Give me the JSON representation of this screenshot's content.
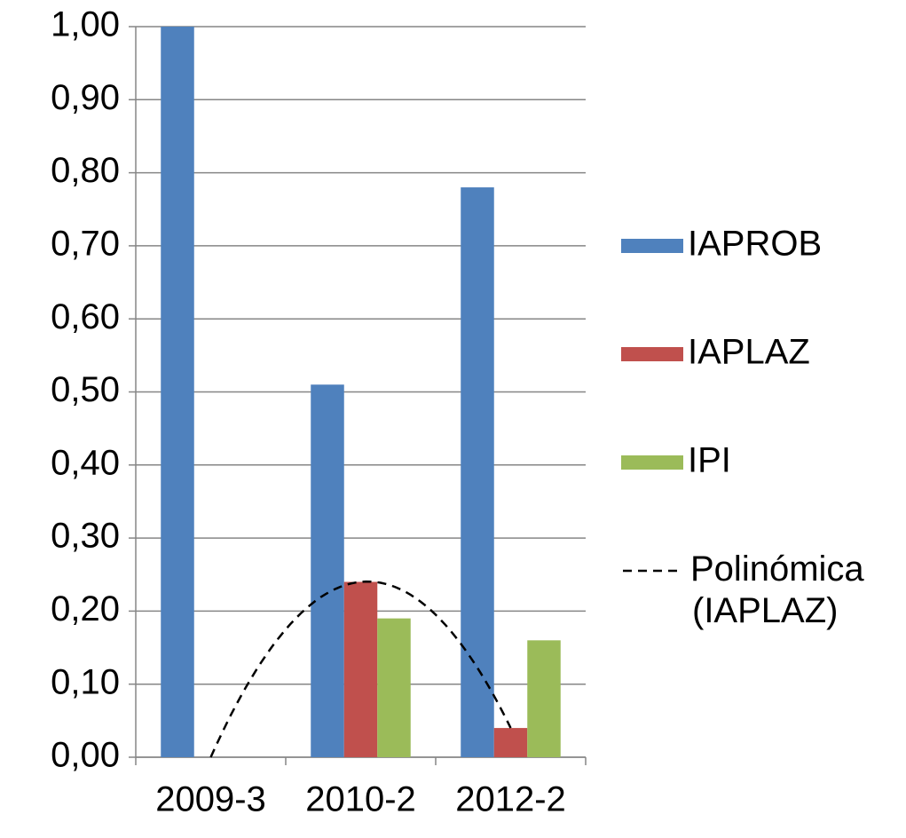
{
  "chart_data": {
    "type": "bar",
    "categories": [
      "2009-3",
      "2010-2",
      "2012-2"
    ],
    "series": [
      {
        "name": "IAPROB",
        "color": "#4f81bd",
        "values": [
          1.0,
          0.51,
          0.78
        ]
      },
      {
        "name": "IAPLAZ",
        "color": "#c0504d",
        "values": [
          0,
          0.24,
          0.04
        ]
      },
      {
        "name": "IPI",
        "color": "#9bbb59",
        "values": [
          0,
          0.19,
          0.16
        ]
      }
    ],
    "trendline": {
      "name": "Polinómica (IAPLAZ)",
      "series": 1,
      "order": 2
    },
    "ylim": [
      0,
      1
    ],
    "yticks": [
      {
        "value": 0,
        "label": "0,00"
      },
      {
        "value": 0.1,
        "label": "0,10"
      },
      {
        "value": 0.2,
        "label": "0,20"
      },
      {
        "value": 0.3,
        "label": "0,30"
      },
      {
        "value": 0.4,
        "label": "0,40"
      },
      {
        "value": 0.5,
        "label": "0,50"
      },
      {
        "value": 0.6,
        "label": "0,60"
      },
      {
        "value": 0.7,
        "label": "0,70"
      },
      {
        "value": 0.8,
        "label": "0,80"
      },
      {
        "value": 0.9,
        "label": "0,90"
      },
      {
        "value": 1,
        "label": "1,00"
      }
    ],
    "grid": true,
    "legend": "right"
  }
}
